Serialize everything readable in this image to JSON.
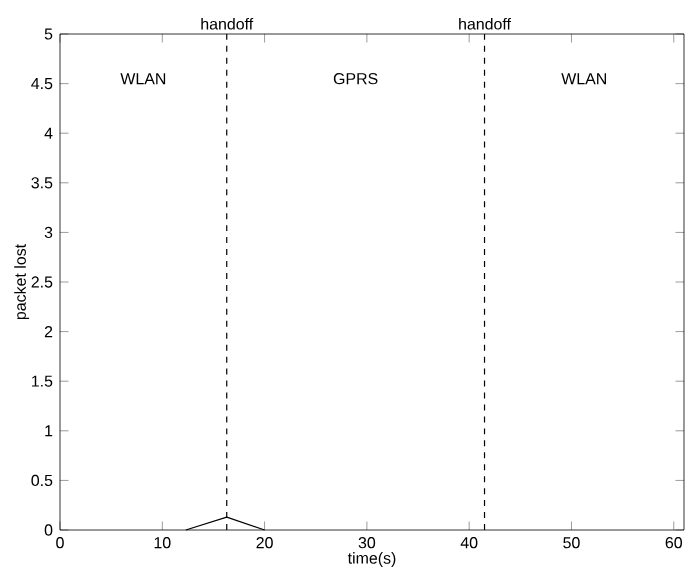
{
  "chart_data": {
    "type": "line",
    "xlabel": "time(s)",
    "ylabel": "packet lost",
    "series": [
      {
        "color": "#000000",
        "x": [
          12.3,
          16.3,
          20
        ],
        "values": [
          0,
          0.13,
          0
        ]
      }
    ],
    "xlim": [
      0,
      61
    ],
    "ylim": [
      0,
      5
    ],
    "xticks": [
      0,
      10,
      20,
      30,
      40,
      50,
      60
    ],
    "yticks": [
      0,
      0.5,
      1,
      1.5,
      2,
      2.5,
      3,
      3.5,
      4,
      4.5,
      5
    ],
    "ref_lines": [
      {
        "axis": "x",
        "value": 16.3,
        "label": "handoff",
        "color": "#000000",
        "line_style": "dashed"
      },
      {
        "axis": "x",
        "value": 41.5,
        "label": "handoff",
        "color": "#000000",
        "line_style": "dashed"
      }
    ],
    "annotations": [
      "WLAN",
      "GPRS",
      "WLAN"
    ],
    "grid": false,
    "marker": "none",
    "line_style": "solid"
  }
}
